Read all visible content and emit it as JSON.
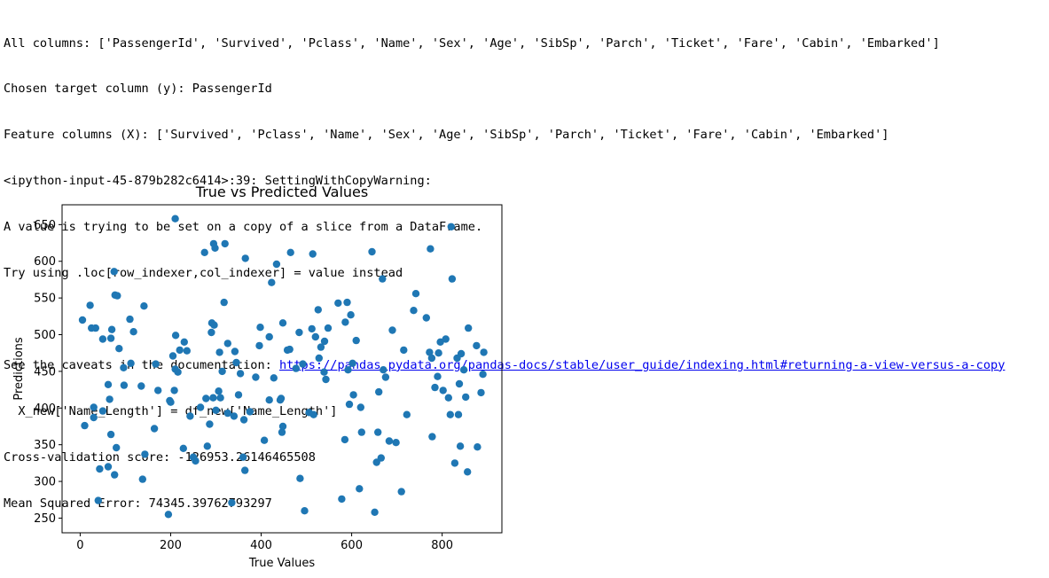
{
  "output": {
    "lines": [
      {
        "text": "All columns: ['PassengerId', 'Survived', 'Pclass', 'Name', 'Sex', 'Age', 'SibSp', 'Parch', 'Ticket', 'Fare', 'Cabin', 'Embarked']"
      },
      {
        "text": "Chosen target column (y): PassengerId"
      },
      {
        "text": "Feature columns (X): ['Survived', 'Pclass', 'Name', 'Sex', 'Age', 'SibSp', 'Parch', 'Ticket', 'Fare', 'Cabin', 'Embarked']"
      },
      {
        "text": "<ipython-input-45-879b282c6414>:39: SettingWithCopyWarning:"
      },
      {
        "text": "A value is trying to be set on a copy of a slice from a DataFrame."
      },
      {
        "text": "Try using .loc[row_indexer,col_indexer] = value instead"
      },
      {
        "text": ""
      },
      {
        "text": "See the caveats in the documentation: ",
        "link": "https://pandas.pydata.org/pandas-docs/stable/user_guide/indexing.html#returning-a-view-versus-a-copy"
      },
      {
        "text": "  X_new['Name_Length'] = df_new['Name_Length']"
      },
      {
        "text": "Cross-validation score: -126953.26146465508"
      },
      {
        "text": "Mean Squared Error: 74345.39762793297"
      }
    ]
  },
  "chart_data": {
    "type": "scatter",
    "title": "True vs Predicted Values",
    "xlabel": "True Values",
    "ylabel": "Predictions",
    "xlim": [
      -40,
      932
    ],
    "ylim": [
      230,
      677
    ],
    "xticks": [
      0,
      200,
      400,
      600,
      800
    ],
    "yticks": [
      250,
      300,
      350,
      400,
      450,
      500,
      550,
      600,
      650
    ],
    "grid": false,
    "color": "#1f77b4",
    "points": [
      [
        5,
        520
      ],
      [
        10,
        376
      ],
      [
        22,
        540
      ],
      [
        25,
        509
      ],
      [
        30,
        387
      ],
      [
        30,
        401
      ],
      [
        34,
        509
      ],
      [
        40,
        274
      ],
      [
        43,
        317
      ],
      [
        50,
        396
      ],
      [
        50,
        494
      ],
      [
        62,
        432
      ],
      [
        62,
        320
      ],
      [
        65,
        412
      ],
      [
        68,
        364
      ],
      [
        68,
        495
      ],
      [
        70,
        507
      ],
      [
        75,
        586
      ],
      [
        76,
        309
      ],
      [
        77,
        554
      ],
      [
        80,
        346
      ],
      [
        82,
        553
      ],
      [
        86,
        481
      ],
      [
        96,
        455
      ],
      [
        97,
        431
      ],
      [
        110,
        521
      ],
      [
        112,
        461
      ],
      [
        118,
        504
      ],
      [
        135,
        430
      ],
      [
        138,
        303
      ],
      [
        141,
        539
      ],
      [
        143,
        337
      ],
      [
        164,
        372
      ],
      [
        167,
        460
      ],
      [
        172,
        424
      ],
      [
        195,
        255
      ],
      [
        198,
        410
      ],
      [
        200,
        408
      ],
      [
        205,
        471
      ],
      [
        208,
        424
      ],
      [
        210,
        658
      ],
      [
        210,
        453
      ],
      [
        211,
        499
      ],
      [
        216,
        449
      ],
      [
        220,
        479
      ],
      [
        228,
        345
      ],
      [
        230,
        490
      ],
      [
        236,
        478
      ],
      [
        243,
        389
      ],
      [
        250,
        333
      ],
      [
        255,
        328
      ],
      [
        266,
        401
      ],
      [
        275,
        612
      ],
      [
        278,
        413
      ],
      [
        281,
        348
      ],
      [
        286,
        378
      ],
      [
        290,
        503
      ],
      [
        291,
        516
      ],
      [
        294,
        414
      ],
      [
        295,
        624
      ],
      [
        296,
        513
      ],
      [
        298,
        618
      ],
      [
        300,
        397
      ],
      [
        306,
        423
      ],
      [
        308,
        476
      ],
      [
        310,
        414
      ],
      [
        314,
        450
      ],
      [
        318,
        544
      ],
      [
        320,
        624
      ],
      [
        326,
        488
      ],
      [
        326,
        393
      ],
      [
        335,
        271
      ],
      [
        340,
        389
      ],
      [
        342,
        477
      ],
      [
        345,
        462
      ],
      [
        350,
        418
      ],
      [
        354,
        447
      ],
      [
        360,
        333
      ],
      [
        362,
        384
      ],
      [
        364,
        315
      ],
      [
        365,
        604
      ],
      [
        375,
        395
      ],
      [
        388,
        442
      ],
      [
        396,
        485
      ],
      [
        398,
        510
      ],
      [
        407,
        356
      ],
      [
        418,
        497
      ],
      [
        418,
        411
      ],
      [
        423,
        571
      ],
      [
        428,
        441
      ],
      [
        434,
        596
      ],
      [
        442,
        411
      ],
      [
        444,
        413
      ],
      [
        446,
        367
      ],
      [
        448,
        375
      ],
      [
        448,
        516
      ],
      [
        458,
        479
      ],
      [
        463,
        480
      ],
      [
        465,
        612
      ],
      [
        477,
        454
      ],
      [
        484,
        503
      ],
      [
        486,
        304
      ],
      [
        492,
        460
      ],
      [
        496,
        260
      ],
      [
        506,
        394
      ],
      [
        512,
        508
      ],
      [
        514,
        610
      ],
      [
        516,
        391
      ],
      [
        520,
        497
      ],
      [
        526,
        534
      ],
      [
        528,
        468
      ],
      [
        532,
        483
      ],
      [
        539,
        449
      ],
      [
        540,
        491
      ],
      [
        543,
        439
      ],
      [
        548,
        509
      ],
      [
        570,
        543
      ],
      [
        578,
        276
      ],
      [
        585,
        357
      ],
      [
        586,
        517
      ],
      [
        590,
        544
      ],
      [
        592,
        452
      ],
      [
        595,
        405
      ],
      [
        598,
        527
      ],
      [
        602,
        461
      ],
      [
        604,
        418
      ],
      [
        610,
        492
      ],
      [
        617,
        290
      ],
      [
        620,
        401
      ],
      [
        622,
        367
      ],
      [
        645,
        613
      ],
      [
        651,
        258
      ],
      [
        655,
        326
      ],
      [
        658,
        367
      ],
      [
        660,
        422
      ],
      [
        665,
        332
      ],
      [
        668,
        576
      ],
      [
        670,
        452
      ],
      [
        675,
        442
      ],
      [
        683,
        355
      ],
      [
        690,
        506
      ],
      [
        698,
        353
      ],
      [
        710,
        286
      ],
      [
        715,
        479
      ],
      [
        722,
        391
      ],
      [
        737,
        533
      ],
      [
        742,
        556
      ],
      [
        765,
        523
      ],
      [
        772,
        476
      ],
      [
        774,
        617
      ],
      [
        777,
        468
      ],
      [
        778,
        361
      ],
      [
        784,
        428
      ],
      [
        790,
        443
      ],
      [
        792,
        475
      ],
      [
        796,
        490
      ],
      [
        802,
        424
      ],
      [
        808,
        494
      ],
      [
        814,
        414
      ],
      [
        818,
        391
      ],
      [
        820,
        647
      ],
      [
        822,
        576
      ],
      [
        828,
        325
      ],
      [
        833,
        468
      ],
      [
        836,
        391
      ],
      [
        838,
        433
      ],
      [
        840,
        348
      ],
      [
        842,
        474
      ],
      [
        848,
        452
      ],
      [
        852,
        415
      ],
      [
        856,
        313
      ],
      [
        858,
        509
      ],
      [
        876,
        485
      ],
      [
        878,
        347
      ],
      [
        886,
        421
      ],
      [
        890,
        446
      ],
      [
        892,
        476
      ]
    ]
  }
}
